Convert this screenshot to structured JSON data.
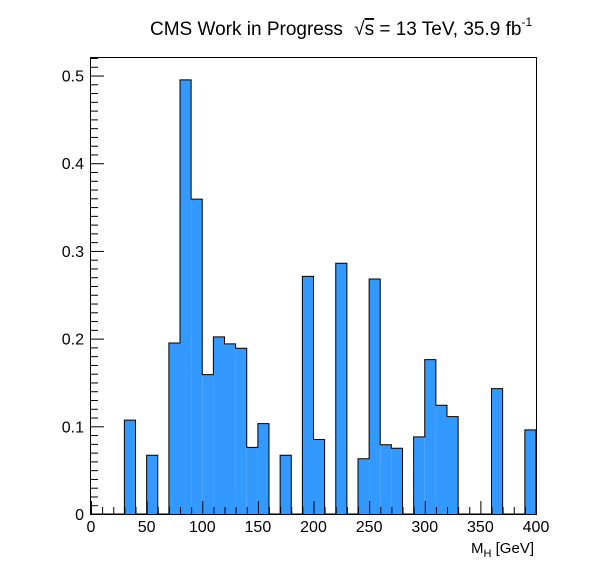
{
  "chart_data": {
    "type": "bar",
    "title": {
      "lead": "CMS Work in Progress",
      "sqrt_sym": "√",
      "sqrt_arg": "s",
      "rest": " = 13 TeV, 35.9 fb",
      "sup": "-1"
    },
    "xlabel": {
      "main": "M",
      "sub": "H",
      "rest": " [GeV]"
    },
    "ylabel": "",
    "xlim": [
      0,
      400
    ],
    "ylim": [
      0,
      0.52
    ],
    "bin_width": 10,
    "x_ticks": [
      0,
      50,
      100,
      150,
      200,
      250,
      300,
      350,
      400
    ],
    "y_ticks": [
      0,
      0.1,
      0.2,
      0.3,
      0.4,
      0.5
    ],
    "x_tick_labels": [
      "0",
      "50",
      "100",
      "150",
      "200",
      "250",
      "300",
      "350",
      "400"
    ],
    "y_tick_labels": [
      "0",
      "0.1",
      "0.2",
      "0.3",
      "0.4",
      "0.5"
    ],
    "bin_low_edges": [
      0,
      10,
      20,
      30,
      40,
      50,
      60,
      70,
      80,
      90,
      100,
      110,
      120,
      130,
      140,
      150,
      160,
      170,
      180,
      190,
      200,
      210,
      220,
      230,
      240,
      250,
      260,
      270,
      280,
      290,
      300,
      310,
      320,
      330,
      340,
      350,
      360,
      370,
      380,
      390
    ],
    "values": [
      0,
      0,
      0,
      0.107,
      0,
      0.067,
      0,
      0.195,
      0.495,
      0.359,
      0.159,
      0.202,
      0.194,
      0.189,
      0.076,
      0.103,
      0,
      0.067,
      0,
      0.271,
      0.085,
      0,
      0.286,
      0,
      0.063,
      0.268,
      0.079,
      0.075,
      0,
      0.088,
      0.176,
      0.124,
      0.111,
      0,
      0,
      0,
      0.143,
      0,
      0,
      0.096
    ],
    "fill_color": "#3399ff",
    "grid": false
  }
}
